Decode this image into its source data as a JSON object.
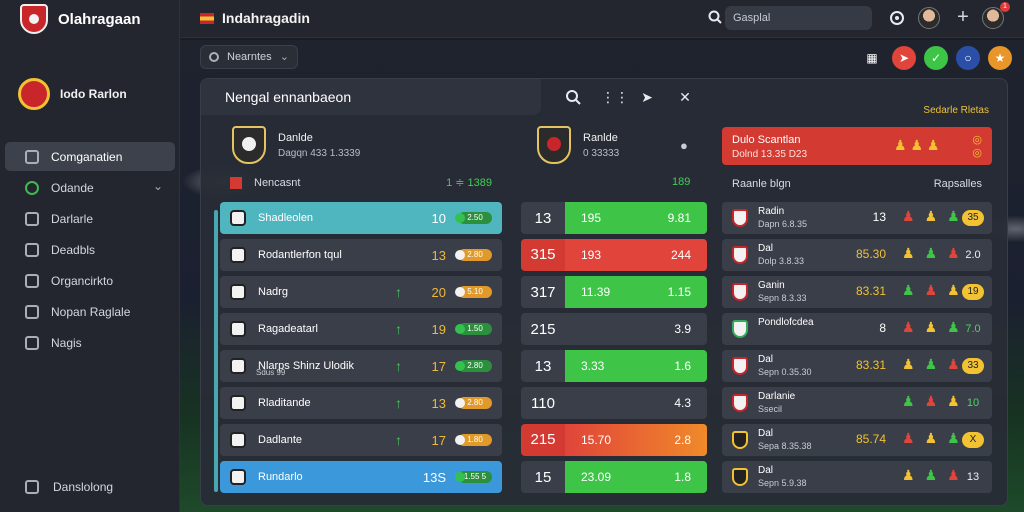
{
  "app": {
    "brand": "Olahragaan"
  },
  "sidebar": {
    "club_name": "Iodo Rarlon",
    "items": [
      {
        "label": "Comganatien",
        "active": true
      },
      {
        "label": "Odande",
        "has_chevron": true
      },
      {
        "label": "Darlarle"
      },
      {
        "label": "Deadbls"
      },
      {
        "label": "Organcirkto"
      },
      {
        "label": "Nopan Raglale"
      },
      {
        "label": "Nagis"
      }
    ],
    "bottom_label": "Danslolong"
  },
  "topbar": {
    "title": "Indahragadin",
    "search_placeholder": "Gasplal",
    "notif_count": "1"
  },
  "filter": {
    "label": "Nearntes"
  },
  "panel": {
    "title": "Nengal ennanbaeon",
    "right_label": "Sedarle Rletas",
    "team_a": {
      "name": "Danlde",
      "sub": "Dagqn 433 1.3339"
    },
    "team_b": {
      "name": "Ranlde",
      "sub": "0 33333"
    },
    "left_header": {
      "label": "Nencasnt",
      "stat": "1 ≑ 1389"
    },
    "mid_header": "189",
    "right_header": {
      "label": "Raanle blgn",
      "right": "Rapsalles"
    }
  },
  "left_rows": [
    {
      "name": "Shadleolen",
      "num": "10",
      "pill": "2.50",
      "style": "teal",
      "arrow": false
    },
    {
      "name": "Rodantlerfon tqul",
      "num": "13",
      "pill": "2.80",
      "style": "",
      "arrow": false
    },
    {
      "name": "Nadrg",
      "num": "20",
      "pill": "5.10",
      "style": "",
      "arrow": true
    },
    {
      "name": "Ragadeatarl",
      "num": "19",
      "pill": "1.50",
      "style": "",
      "arrow": true
    },
    {
      "name": "Nlarps Shinz Ulodik",
      "sub": "Sdus 99",
      "num": "17",
      "pill": "2.80",
      "style": "",
      "arrow": true
    },
    {
      "name": "Rladitande",
      "num": "13",
      "pill": "2.80",
      "style": "",
      "arrow": true
    },
    {
      "name": "Dadlante",
      "num": "17",
      "pill": "1.80",
      "style": "",
      "arrow": true
    },
    {
      "name": "Rundarlo",
      "num": "13S",
      "pill": "1.55 5",
      "style": "blue",
      "arrow": false
    }
  ],
  "mid_rows": [
    {
      "a": "13",
      "b": "195",
      "c": "9.81",
      "bar": "green"
    },
    {
      "a": "315",
      "b": "193",
      "c": "244",
      "bar": "red"
    },
    {
      "a": "317",
      "b": "11.39",
      "c": "1.15",
      "bar": "green"
    },
    {
      "a": "215",
      "b": "",
      "c": "3.9",
      "bar": "none"
    },
    {
      "a": "13",
      "b": "3.33",
      "c": "1.6",
      "bar": "green"
    },
    {
      "a": "110",
      "b": "",
      "c": "4.3",
      "bar": "none"
    },
    {
      "a": "215",
      "b": "15.70",
      "c": "2.8",
      "bar": "red-orange"
    },
    {
      "a": "15",
      "b": "23.09",
      "c": "1.8",
      "bar": "green"
    }
  ],
  "right_head": {
    "title": "Dulo Scantlan",
    "sub": "Dolnd 13.35 D23"
  },
  "right_rows": [
    {
      "name": "Radin",
      "meta": "Dapn 6.8.35",
      "num": "13",
      "val": "35",
      "num_white": true,
      "logo": "red"
    },
    {
      "name": "Dal",
      "meta": "Dolp 3.8.33",
      "num": "85.30",
      "val": "2.0",
      "logo": "red"
    },
    {
      "name": "Ganin",
      "meta": "Sepn 8.3.33",
      "num": "83.31",
      "val": "19",
      "logo": "red"
    },
    {
      "name": "Pondlofcdea",
      "meta": "",
      "num": "8",
      "val": "7.0",
      "num_white": true,
      "logo": "green"
    },
    {
      "name": "Dal",
      "meta": "Sepn 0.35.30",
      "num": "83.31",
      "val": "33",
      "logo": "red"
    },
    {
      "name": "Darlanie",
      "meta": "Ssecil",
      "num": "",
      "val": "10",
      "logo": "red"
    },
    {
      "name": "Dal",
      "meta": "Sepa 8.35.38",
      "num": "85.74",
      "val": "X",
      "logo": "yellow"
    },
    {
      "name": "Dal",
      "meta": "Sepn 5.9.38",
      "num": "",
      "val": "13",
      "logo": "yellow"
    }
  ],
  "colors": {
    "accent": "#3ec548",
    "danger": "#e0443a",
    "teal": "#4fb5bf",
    "blue": "#3a98db",
    "gold": "#f2c233"
  }
}
